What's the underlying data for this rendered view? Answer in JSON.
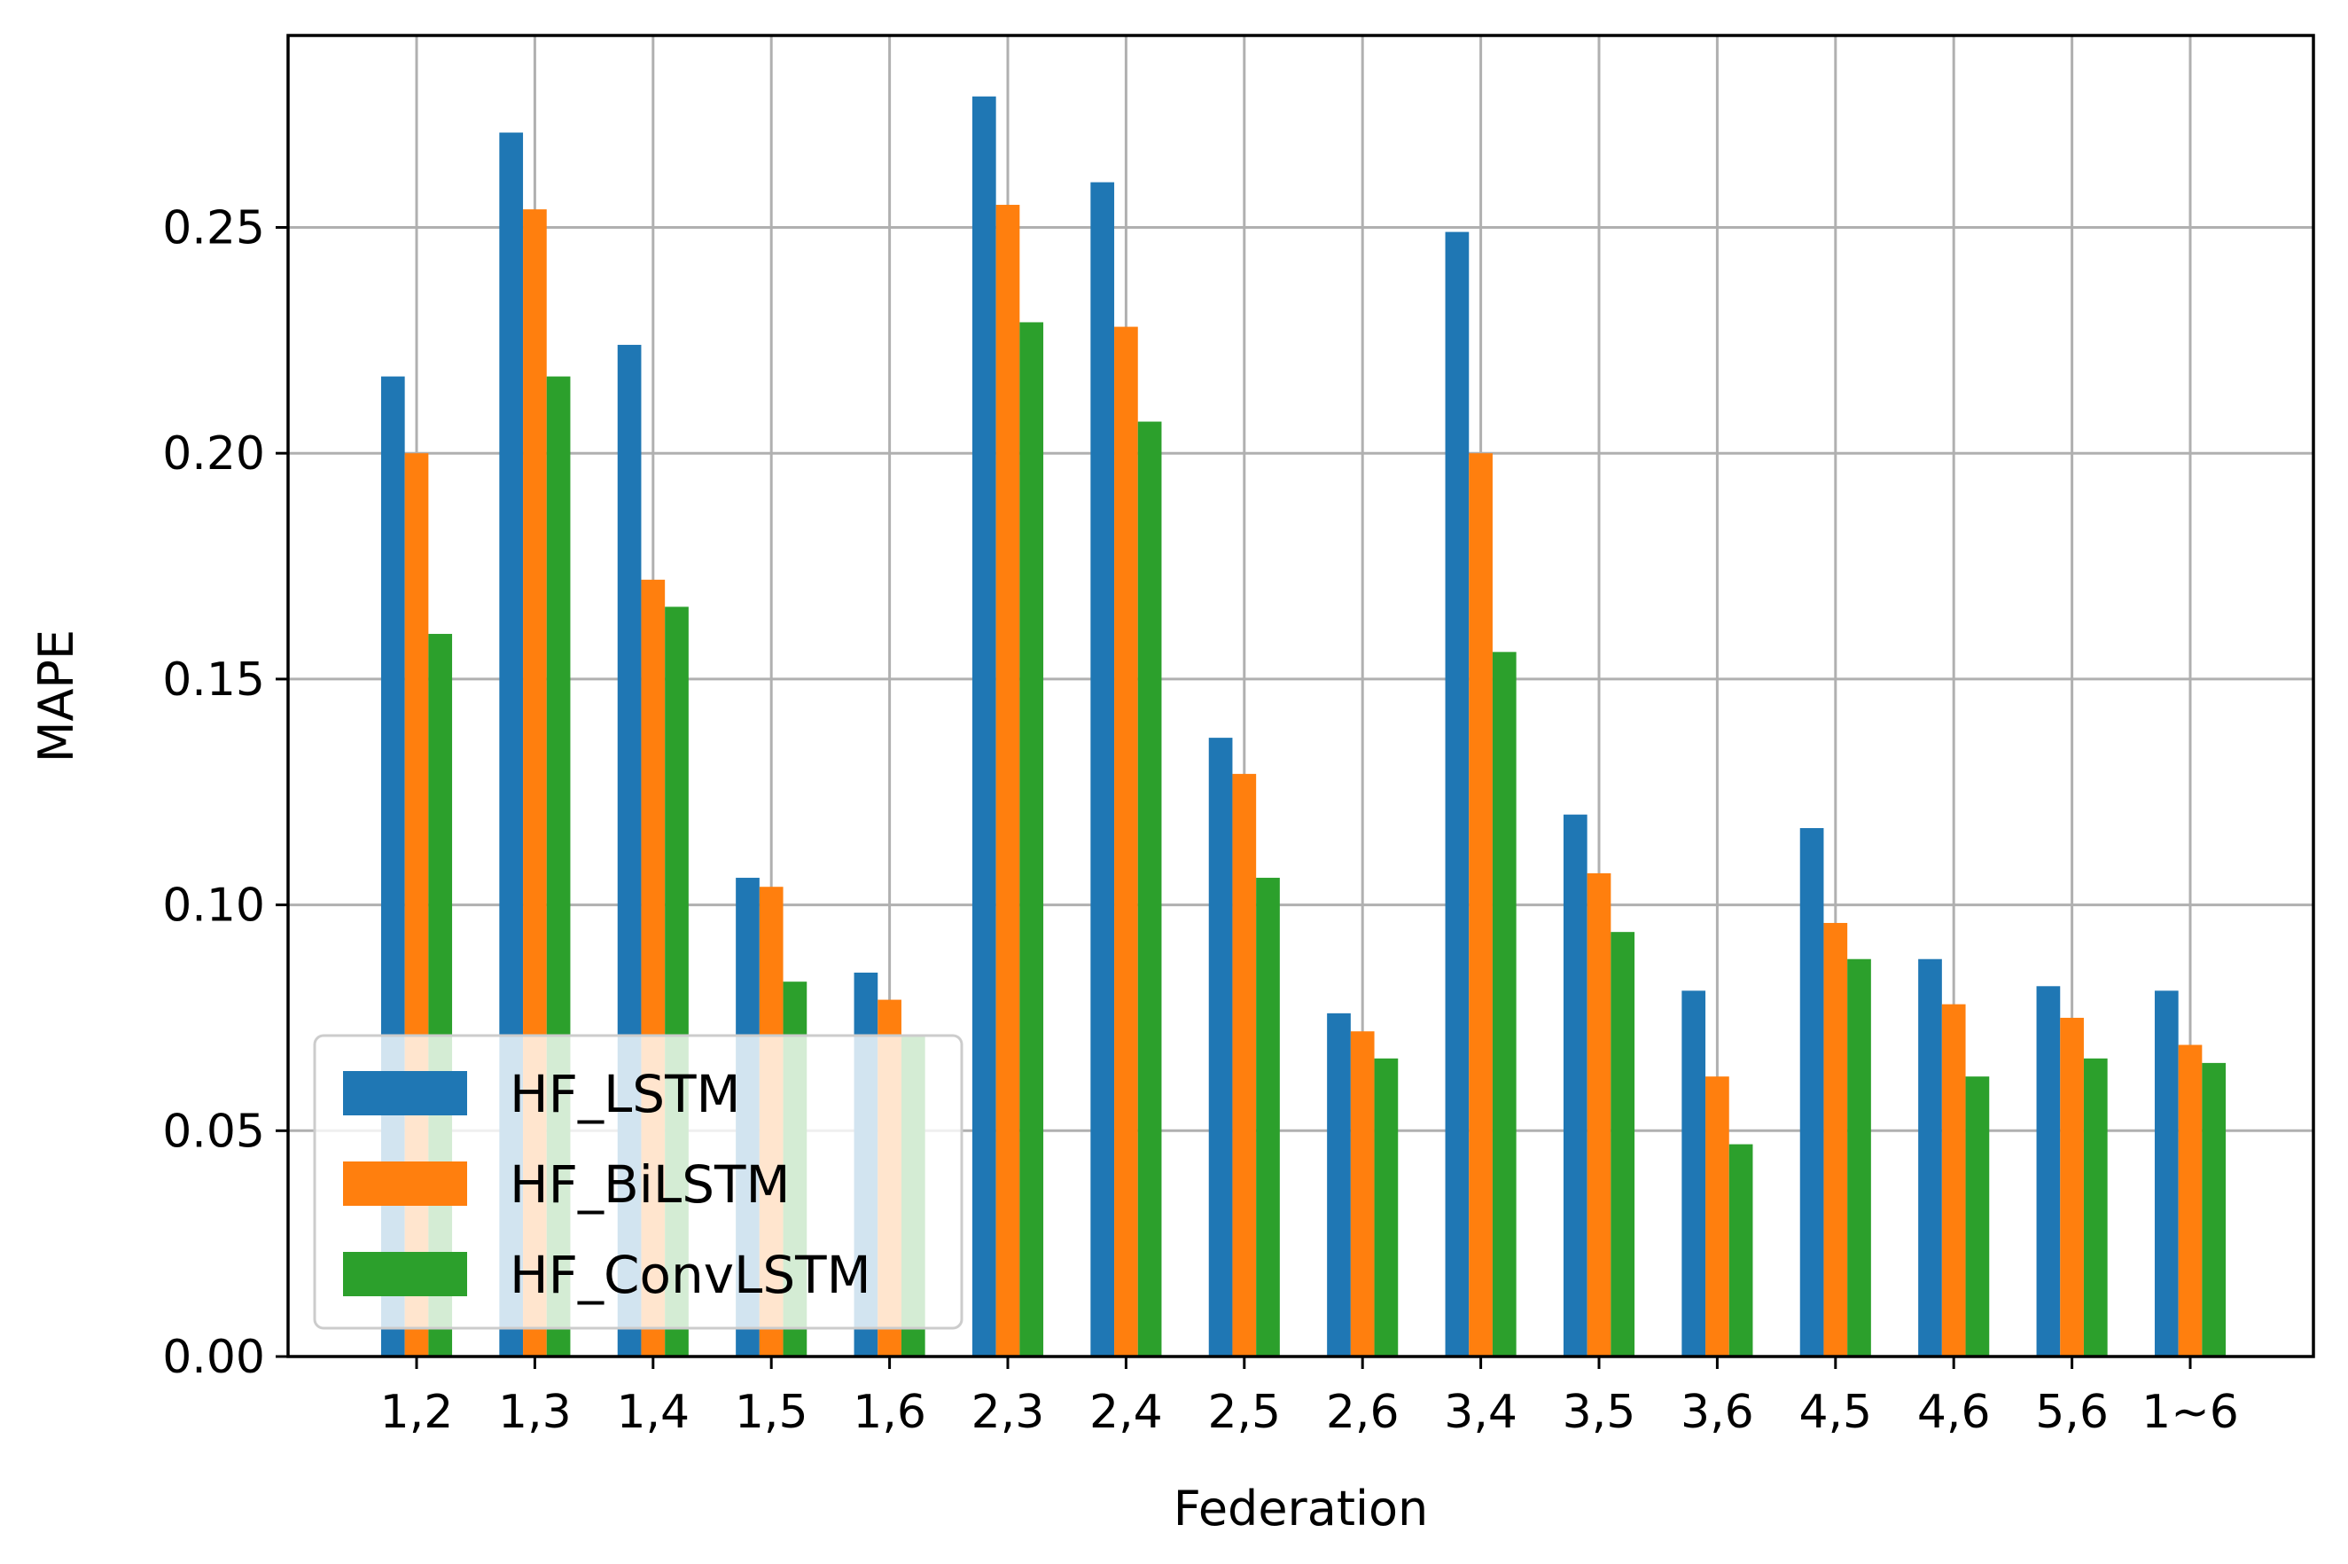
{
  "chart_data": {
    "type": "bar",
    "title": "",
    "xlabel": "Federation",
    "ylabel": "MAPE",
    "categories": [
      "1,2",
      "1,3",
      "1,4",
      "1,5",
      "1,6",
      "2,3",
      "2,4",
      "2,5",
      "2,6",
      "3,4",
      "3,5",
      "3,6",
      "4,5",
      "4,6",
      "5,6",
      "1~6"
    ],
    "series": [
      {
        "name": "HF_LSTM",
        "color": "#1f77b4",
        "values": [
          0.217,
          0.271,
          0.224,
          0.106,
          0.085,
          0.279,
          0.26,
          0.137,
          0.076,
          0.249,
          0.12,
          0.081,
          0.117,
          0.088,
          0.082,
          0.081
        ]
      },
      {
        "name": "HF_BiLSTM",
        "color": "#ff7f0e",
        "values": [
          0.2,
          0.254,
          0.172,
          0.104,
          0.079,
          0.255,
          0.228,
          0.129,
          0.072,
          0.2,
          0.107,
          0.062,
          0.096,
          0.078,
          0.075,
          0.069
        ]
      },
      {
        "name": "HF_ConvLSTM",
        "color": "#2ca02c",
        "values": [
          0.16,
          0.217,
          0.166,
          0.083,
          0.071,
          0.229,
          0.207,
          0.106,
          0.066,
          0.156,
          0.094,
          0.047,
          0.088,
          0.062,
          0.066,
          0.065
        ]
      }
    ],
    "yticks": [
      "0.00",
      "0.05",
      "0.10",
      "0.15",
      "0.20",
      "0.25"
    ],
    "ytick_values": [
      0,
      0.05,
      0.1,
      0.15,
      0.2,
      0.25
    ],
    "ylim": [
      0,
      0.2925
    ],
    "grid": true,
    "legend_position": "lower-left"
  }
}
